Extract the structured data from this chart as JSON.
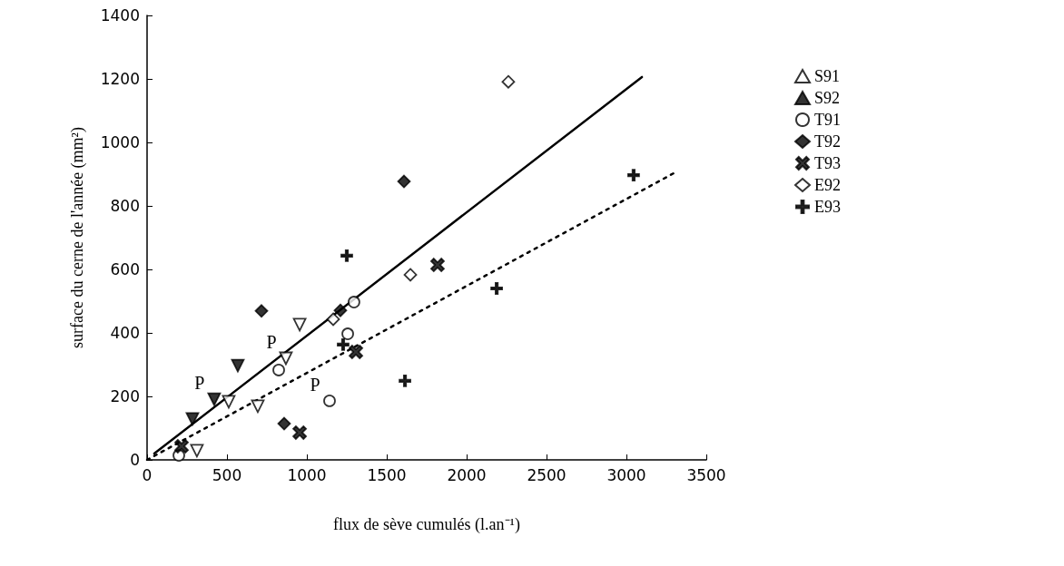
{
  "chart_data": {
    "type": "scatter",
    "xlabel": "flux de sève cumulés (l.an⁻¹)",
    "ylabel": "surface du cerne de l'année (mm²)",
    "xlim": [
      0,
      3500
    ],
    "xticks": [
      0,
      500,
      1000,
      1500,
      2000,
      2500,
      3000,
      3500
    ],
    "ylim": [
      0,
      1400
    ],
    "yticks": [
      0,
      200,
      400,
      600,
      800,
      1000,
      1200,
      1400
    ],
    "grid": false,
    "legend": "right",
    "series": [
      {
        "name": "S91",
        "color": "#ffffff",
        "marker": "triangle",
        "x": [
          312,
          511,
          693,
          869,
          955
        ],
        "values": [
          29,
          183,
          169,
          320,
          426
        ]
      },
      {
        "name": "S92",
        "color": "#000000",
        "marker": "triangle",
        "x": [
          284,
          420,
          568
        ],
        "values": [
          129,
          191,
          297
        ]
      },
      {
        "name": "T91",
        "color": "#ffffff",
        "marker": "circle",
        "x": [
          199,
          824,
          1142,
          1256,
          1295
        ],
        "values": [
          14,
          283,
          186,
          397,
          497
        ]
      },
      {
        "name": "T92",
        "color": "#000000",
        "marker": "diamond",
        "x": [
          716,
          858,
          1210,
          1608
        ],
        "values": [
          469,
          114,
          471,
          877
        ]
      },
      {
        "name": "T93",
        "color": "#000000",
        "x": [
          216,
          955,
          1307,
          1818
        ],
        "values": [
          43,
          86,
          340,
          614
        ]
      },
      {
        "name": "E92",
        "color": "#ffffff",
        "marker": "diamond",
        "x": [
          1165,
          1648,
          2261
        ],
        "values": [
          443,
          583,
          1191
        ]
      },
      {
        "name": "E93",
        "color": "#000000",
        "marker": "cross",
        "x": [
          1227,
          1250,
          1614,
          2188,
          3045
        ],
        "values": [
          363,
          643,
          249,
          540,
          897
        ]
      },
      {
        "type": "line",
        "color": "#000000",
        "marker": "none",
        "line_style": "solid",
        "x": [
          45,
          3097
        ],
        "values": [
          20,
          1206
        ]
      },
      {
        "type": "line",
        "color": "#000000",
        "marker": "none",
        "line_style": "dotted",
        "x": [
          0,
          3300
        ],
        "values": [
          0,
          904
        ]
      }
    ],
    "annotations": [
      {
        "text": "P",
        "x": 420,
        "y": 191
      },
      {
        "text": "P",
        "x": 869,
        "y": 320
      },
      {
        "text": "P",
        "x": 1142,
        "y": 186
      }
    ]
  }
}
